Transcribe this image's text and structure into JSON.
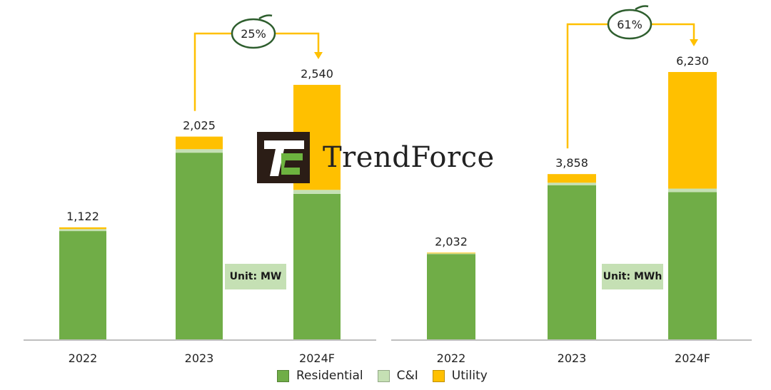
{
  "colors": {
    "residential": "#70AD47",
    "ci": "#C5E0B4",
    "utility": "#FFC000",
    "axis": "#BFBFBF",
    "callout_ring": "#2E5E2E"
  },
  "watermark": {
    "text": "TrendForce"
  },
  "legend": [
    {
      "label": "Residential",
      "color": "#70AD47"
    },
    {
      "label": "C&I",
      "color": "#C5E0B4"
    },
    {
      "label": "Utility",
      "color": "#FFC000"
    }
  ],
  "chart_data": [
    {
      "type": "bar",
      "stacked": true,
      "unit_label": "Unit: MW",
      "categories": [
        "2022",
        "2023",
        "2024F"
      ],
      "series": [
        {
          "name": "Residential",
          "values": [
            1085,
            1865,
            1455
          ]
        },
        {
          "name": "C&I",
          "values": [
            20,
            35,
            40
          ]
        },
        {
          "name": "Utility",
          "values": [
            17,
            125,
            1045
          ]
        }
      ],
      "totals": [
        "1,122",
        "2,025",
        "2,540"
      ],
      "total_values": [
        1122,
        2025,
        2540
      ],
      "ylim": [
        0,
        2540
      ],
      "growth_callout": {
        "from": "2023",
        "to": "2024F",
        "label": "25%"
      },
      "legend_position": "bottom",
      "grid": false
    },
    {
      "type": "bar",
      "stacked": true,
      "unit_label": "Unit: MWh",
      "categories": [
        "2022",
        "2023",
        "2024F"
      ],
      "series": [
        {
          "name": "Residential",
          "values": [
            2000,
            3600,
            3440
          ]
        },
        {
          "name": "C&I",
          "values": [
            15,
            58,
            80
          ]
        },
        {
          "name": "Utility",
          "values": [
            17,
            200,
            2710
          ]
        }
      ],
      "totals": [
        "2,032",
        "3,858",
        "6,230"
      ],
      "total_values": [
        2032,
        3858,
        6230
      ],
      "ylim": [
        0,
        6230
      ],
      "growth_callout": {
        "from": "2023",
        "to": "2024F",
        "label": "61%"
      },
      "legend_position": "bottom",
      "grid": false
    }
  ]
}
